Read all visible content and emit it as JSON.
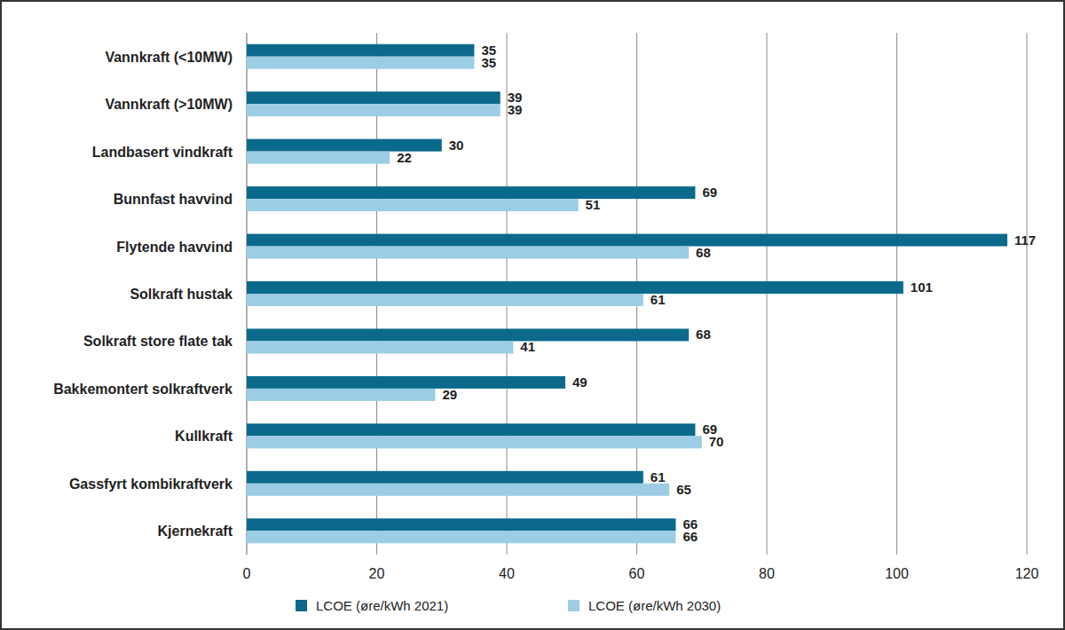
{
  "chart_data": {
    "type": "bar",
    "orientation": "horizontal",
    "categories": [
      "Vannkraft (<10MW)",
      "Vannkraft (>10MW)",
      "Landbasert vindkraft",
      "Bunnfast havvind",
      "Flytende havvind",
      "Solkraft hustak",
      "Solkraft store flate tak",
      "Bakkemontert solkraftverk",
      "Kullkraft",
      "Gassfyrt kombikraftverk",
      "Kjernekraft"
    ],
    "series": [
      {
        "name": "LCOE (øre/kWh 2021)",
        "color": "#0b6a8c",
        "values": [
          35,
          39,
          30,
          69,
          117,
          101,
          68,
          49,
          69,
          61,
          66
        ]
      },
      {
        "name": "LCOE (øre/kWh 2030)",
        "color": "#9dcde4",
        "values": [
          35,
          39,
          22,
          51,
          68,
          61,
          41,
          29,
          70,
          65,
          66
        ]
      }
    ],
    "xlim": [
      0,
      120
    ],
    "xticks": [
      0,
      20,
      40,
      60,
      80,
      100,
      120
    ],
    "grid": true,
    "data_labels": true,
    "legend": "bottom"
  }
}
